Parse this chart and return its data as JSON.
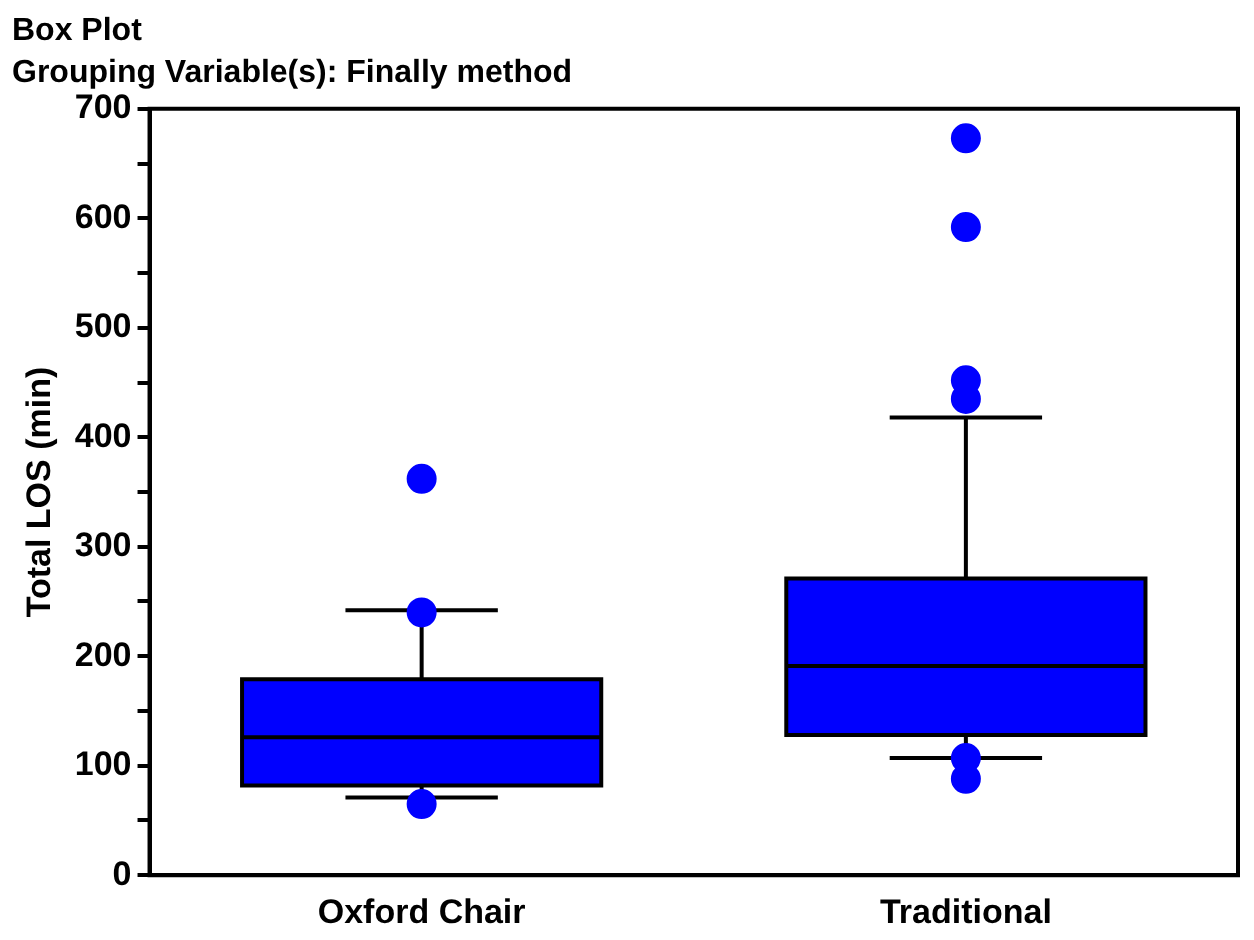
{
  "chart_data": {
    "type": "box",
    "title": "Box Plot",
    "subtitle": "Grouping Variable(s): Finally method",
    "ylabel": "Total LOS (min)",
    "categories": [
      "Oxford Chair",
      "Traditional"
    ],
    "series": [
      {
        "color": "#0000ff",
        "boxes": [
          {
            "low": 71,
            "q1": 82,
            "median": 126,
            "q3": 179,
            "high": 242,
            "outliers": [
              362,
              240,
              65
            ]
          },
          {
            "low": 107,
            "q1": 128,
            "median": 191,
            "q3": 271,
            "high": 418,
            "outliers": [
              673,
              592,
              452,
              435,
              107,
              88
            ]
          }
        ]
      }
    ],
    "ylim": [
      0,
      700
    ],
    "yticks": [
      0,
      {
        "value": 50,
        "label": null
      },
      100,
      {
        "value": 150,
        "label": null
      },
      200,
      {
        "value": 250,
        "label": null
      },
      300,
      {
        "value": 350,
        "label": null
      },
      400,
      {
        "value": 450,
        "label": null
      },
      500,
      {
        "value": 550,
        "label": null
      },
      600,
      {
        "value": 650,
        "label": null
      },
      700
    ],
    "grid": false,
    "legend": false
  }
}
